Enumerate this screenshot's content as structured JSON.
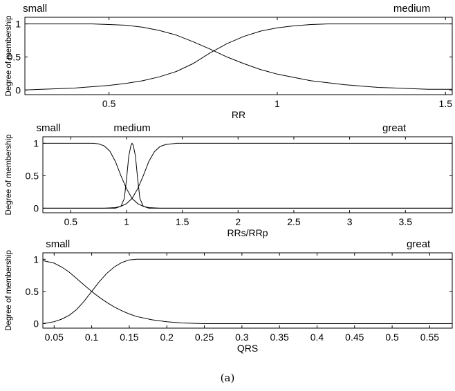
{
  "caption": "(a)",
  "chart_data": [
    {
      "type": "line",
      "xlabel": "RR",
      "ylabel": "Degree of membership",
      "xlim": [
        0.25,
        1.52
      ],
      "ylim": [
        -0.07,
        1.1
      ],
      "xticks": [
        0.5,
        1,
        1.5
      ],
      "yticks": [
        0,
        0.5,
        1
      ],
      "grid": false,
      "series": [
        {
          "name": "small",
          "label_at": 0.28,
          "x": [
            0.25,
            0.3,
            0.35,
            0.4,
            0.45,
            0.5,
            0.55,
            0.6,
            0.65,
            0.7,
            0.75,
            0.8,
            0.85,
            0.9,
            0.95,
            1.0,
            1.05,
            1.1,
            1.15,
            1.2,
            1.25,
            1.3,
            1.35,
            1.4,
            1.45,
            1.5,
            1.52
          ],
          "y": [
            1.0,
            1.0,
            1.0,
            1.0,
            1.0,
            0.99,
            0.98,
            0.95,
            0.9,
            0.83,
            0.73,
            0.62,
            0.5,
            0.4,
            0.31,
            0.24,
            0.19,
            0.14,
            0.11,
            0.08,
            0.06,
            0.04,
            0.03,
            0.02,
            0.01,
            0.01,
            0.01
          ]
        },
        {
          "name": "medium",
          "label_at": 1.4,
          "x": [
            0.25,
            0.3,
            0.35,
            0.4,
            0.45,
            0.5,
            0.55,
            0.6,
            0.65,
            0.7,
            0.75,
            0.8,
            0.85,
            0.9,
            0.95,
            1.0,
            1.05,
            1.1,
            1.15,
            1.2,
            1.25,
            1.3,
            1.35,
            1.4,
            1.45,
            1.5,
            1.52
          ],
          "y": [
            0.0,
            0.01,
            0.02,
            0.03,
            0.05,
            0.07,
            0.1,
            0.14,
            0.2,
            0.28,
            0.4,
            0.56,
            0.7,
            0.81,
            0.89,
            0.94,
            0.97,
            0.99,
            1.0,
            1.0,
            1.0,
            1.0,
            1.0,
            1.0,
            1.0,
            1.0,
            1.0
          ]
        }
      ]
    },
    {
      "type": "line",
      "xlabel": "RRs/RRp",
      "ylabel": "Degree of membership",
      "xlim": [
        0.25,
        3.92
      ],
      "ylim": [
        -0.07,
        1.1
      ],
      "xticks": [
        0.5,
        1,
        1.5,
        2,
        2.5,
        3,
        3.5
      ],
      "yticks": [
        0,
        0.5,
        1
      ],
      "grid": false,
      "series": [
        {
          "name": "small",
          "label_at": 0.3,
          "x": [
            0.25,
            0.5,
            0.7,
            0.75,
            0.8,
            0.85,
            0.9,
            0.95,
            1.0,
            1.05,
            1.1,
            1.15,
            1.2,
            1.3,
            3.92
          ],
          "y": [
            1.0,
            1.0,
            1.0,
            0.99,
            0.96,
            0.88,
            0.72,
            0.5,
            0.3,
            0.15,
            0.07,
            0.03,
            0.01,
            0.0,
            0.0
          ]
        },
        {
          "name": "medium",
          "label_at": 1.05,
          "x": [
            0.25,
            0.9,
            0.95,
            0.98,
            1.0,
            1.02,
            1.04,
            1.05,
            1.06,
            1.08,
            1.1,
            1.12,
            1.15,
            1.2,
            3.92
          ],
          "y": [
            0.0,
            0.0,
            0.03,
            0.15,
            0.45,
            0.8,
            0.97,
            1.0,
            0.97,
            0.8,
            0.45,
            0.15,
            0.03,
            0.0,
            0.0
          ]
        },
        {
          "name": "great",
          "label_at": 3.4,
          "x": [
            0.25,
            0.8,
            0.9,
            0.95,
            1.0,
            1.05,
            1.1,
            1.15,
            1.2,
            1.25,
            1.3,
            1.35,
            1.4,
            1.45,
            1.5,
            3.92
          ],
          "y": [
            0.0,
            0.0,
            0.01,
            0.03,
            0.07,
            0.15,
            0.3,
            0.5,
            0.72,
            0.87,
            0.95,
            0.98,
            0.99,
            1.0,
            1.0,
            1.0
          ]
        }
      ]
    },
    {
      "type": "line",
      "xlabel": "QRS",
      "ylabel": "Degree of membership",
      "xlim": [
        0.035,
        0.58
      ],
      "ylim": [
        -0.07,
        1.1
      ],
      "xticks": [
        0.05,
        0.1,
        0.15,
        0.2,
        0.25,
        0.3,
        0.35,
        0.4,
        0.45,
        0.5,
        0.55
      ],
      "yticks": [
        0,
        0.5,
        1
      ],
      "grid": false,
      "series": [
        {
          "name": "small",
          "label_at": 0.055,
          "x": [
            0.035,
            0.05,
            0.06,
            0.07,
            0.08,
            0.09,
            0.1,
            0.11,
            0.12,
            0.13,
            0.14,
            0.15,
            0.16,
            0.18,
            0.2,
            0.22,
            0.25,
            0.58
          ],
          "y": [
            0.98,
            0.94,
            0.88,
            0.8,
            0.7,
            0.6,
            0.5,
            0.41,
            0.33,
            0.26,
            0.2,
            0.15,
            0.11,
            0.06,
            0.03,
            0.01,
            0.0,
            0.0
          ]
        },
        {
          "name": "great",
          "label_at": 0.535,
          "x": [
            0.035,
            0.05,
            0.06,
            0.07,
            0.08,
            0.09,
            0.1,
            0.11,
            0.12,
            0.13,
            0.14,
            0.15,
            0.16,
            0.58
          ],
          "y": [
            0.0,
            0.03,
            0.07,
            0.13,
            0.22,
            0.35,
            0.5,
            0.65,
            0.78,
            0.88,
            0.95,
            0.99,
            1.0,
            1.0
          ]
        }
      ]
    }
  ]
}
